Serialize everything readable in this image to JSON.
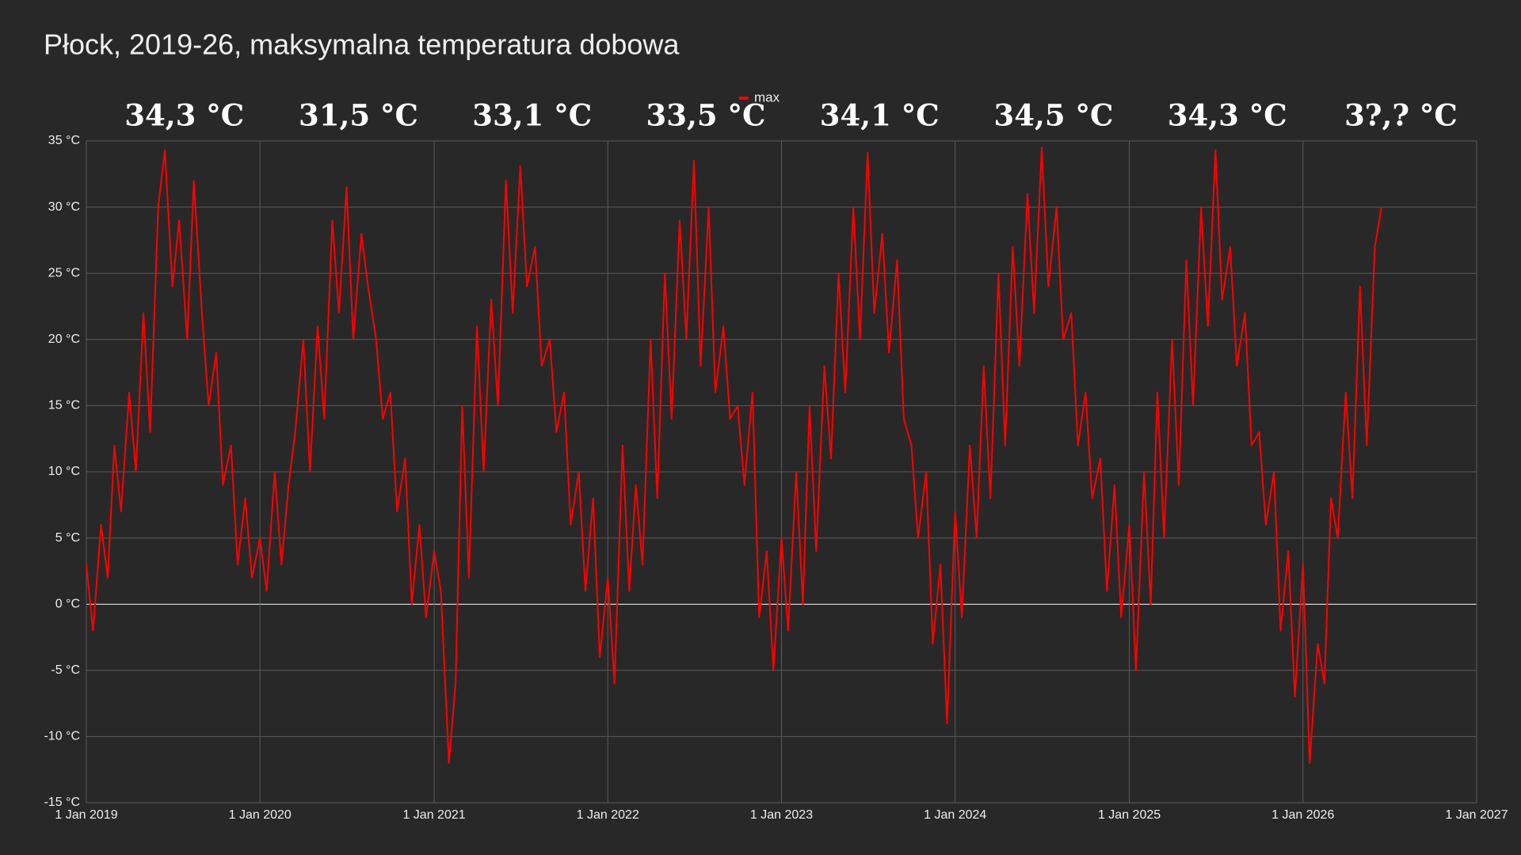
{
  "chart_data": {
    "type": "line",
    "title": "Płock, 2019-26, maksymalna temperatura dobowa",
    "annotations": [
      "34,3 °C",
      "31,5 °C",
      "33,1 °C",
      "33,5 °C",
      "34,1 °C",
      "34,5 °C",
      "34,3 °C",
      "3?,? °C"
    ],
    "x": [
      "2019-01-01",
      "2019-01-15",
      "2019-02-01",
      "2019-02-15",
      "2019-03-01",
      "2019-03-15",
      "2019-04-01",
      "2019-04-15",
      "2019-05-01",
      "2019-05-15",
      "2019-06-01",
      "2019-06-15",
      "2019-07-01",
      "2019-07-15",
      "2019-08-01",
      "2019-08-15",
      "2019-09-01",
      "2019-09-15",
      "2019-10-01",
      "2019-10-15",
      "2019-11-01",
      "2019-11-15",
      "2019-12-01",
      "2019-12-15",
      "2020-01-01",
      "2020-01-15",
      "2020-02-01",
      "2020-02-15",
      "2020-03-01",
      "2020-03-15",
      "2020-04-01",
      "2020-04-15",
      "2020-05-01",
      "2020-05-15",
      "2020-06-01",
      "2020-06-15",
      "2020-07-01",
      "2020-07-15",
      "2020-08-01",
      "2020-08-15",
      "2020-09-01",
      "2020-09-15",
      "2020-10-01",
      "2020-10-15",
      "2020-11-01",
      "2020-11-15",
      "2020-12-01",
      "2020-12-15",
      "2021-01-01",
      "2021-01-15",
      "2021-02-01",
      "2021-02-15",
      "2021-03-01",
      "2021-03-15",
      "2021-04-01",
      "2021-04-15",
      "2021-05-01",
      "2021-05-15",
      "2021-06-01",
      "2021-06-15",
      "2021-07-01",
      "2021-07-15",
      "2021-08-01",
      "2021-08-15",
      "2021-09-01",
      "2021-09-15",
      "2021-10-01",
      "2021-10-15",
      "2021-11-01",
      "2021-11-15",
      "2021-12-01",
      "2021-12-15",
      "2022-01-01",
      "2022-01-15",
      "2022-02-01",
      "2022-02-15",
      "2022-03-01",
      "2022-03-15",
      "2022-04-01",
      "2022-04-15",
      "2022-05-01",
      "2022-05-15",
      "2022-06-01",
      "2022-06-15",
      "2022-07-01",
      "2022-07-15",
      "2022-08-01",
      "2022-08-15",
      "2022-09-01",
      "2022-09-15",
      "2022-10-01",
      "2022-10-15",
      "2022-11-01",
      "2022-11-15",
      "2022-12-01",
      "2022-12-15",
      "2023-01-01",
      "2023-01-15",
      "2023-02-01",
      "2023-02-15",
      "2023-03-01",
      "2023-03-15",
      "2023-04-01",
      "2023-04-15",
      "2023-05-01",
      "2023-05-15",
      "2023-06-01",
      "2023-06-15",
      "2023-07-01",
      "2023-07-15",
      "2023-08-01",
      "2023-08-15",
      "2023-09-01",
      "2023-09-15",
      "2023-10-01",
      "2023-10-15",
      "2023-11-01",
      "2023-11-15",
      "2023-12-01",
      "2023-12-15",
      "2024-01-01",
      "2024-01-15",
      "2024-02-01",
      "2024-02-15",
      "2024-03-01",
      "2024-03-15",
      "2024-04-01",
      "2024-04-15",
      "2024-05-01",
      "2024-05-15",
      "2024-06-01",
      "2024-06-15",
      "2024-07-01",
      "2024-07-15",
      "2024-08-01",
      "2024-08-15",
      "2024-09-01",
      "2024-09-15",
      "2024-10-01",
      "2024-10-15",
      "2024-11-01",
      "2024-11-15",
      "2024-12-01",
      "2024-12-15",
      "2025-01-01",
      "2025-01-15",
      "2025-02-01",
      "2025-02-15",
      "2025-03-01",
      "2025-03-15",
      "2025-04-01",
      "2025-04-15",
      "2025-05-01",
      "2025-05-15",
      "2025-06-01",
      "2025-06-15",
      "2025-07-01",
      "2025-07-15",
      "2025-08-01",
      "2025-08-15",
      "2025-09-01",
      "2025-09-15",
      "2025-10-01",
      "2025-10-15",
      "2025-11-01",
      "2025-11-15",
      "2025-12-01",
      "2025-12-15",
      "2026-01-01",
      "2026-01-15",
      "2026-02-01",
      "2026-02-15",
      "2026-03-01",
      "2026-03-15",
      "2026-04-01",
      "2026-04-15",
      "2026-05-01",
      "2026-05-15",
      "2026-06-01",
      "2026-06-15"
    ],
    "series": [
      {
        "name": "max",
        "color": "#ff0000",
        "values": [
          3,
          -2,
          6,
          2,
          12,
          7,
          16,
          10,
          22,
          13,
          30,
          34.3,
          24,
          29,
          20,
          32,
          22,
          15,
          19,
          9,
          12,
          3,
          8,
          2,
          5,
          1,
          10,
          3,
          9,
          13,
          20,
          10,
          21,
          14,
          29,
          22,
          31.5,
          20,
          28,
          24,
          20,
          14,
          16,
          7,
          11,
          0,
          6,
          -1,
          4,
          1,
          -12,
          -6,
          15,
          2,
          21,
          10,
          23,
          15,
          32,
          22,
          33.1,
          24,
          27,
          18,
          20,
          13,
          16,
          6,
          10,
          1,
          8,
          -4,
          2,
          -6,
          12,
          1,
          9,
          3,
          20,
          8,
          25,
          14,
          29,
          20,
          33.5,
          18,
          30,
          16,
          21,
          14,
          15,
          9,
          16,
          -1,
          4,
          -5,
          5,
          -2,
          10,
          0,
          15,
          4,
          18,
          11,
          25,
          16,
          30,
          20,
          34.1,
          22,
          28,
          19,
          26,
          14,
          12,
          5,
          10,
          -3,
          3,
          -9,
          7,
          -1,
          12,
          5,
          18,
          8,
          25,
          12,
          27,
          18,
          31,
          22,
          34.5,
          24,
          30,
          20,
          22,
          12,
          16,
          8,
          11,
          1,
          9,
          -1,
          6,
          -5,
          10,
          0,
          16,
          5,
          20,
          9,
          26,
          15,
          30,
          21,
          34.3,
          23,
          27,
          18,
          22,
          12,
          13,
          6,
          10,
          -2,
          4,
          -7,
          3,
          -12,
          -3,
          -6,
          8,
          5,
          16,
          8,
          24,
          12,
          27,
          30
        ]
      }
    ],
    "xlim": [
      "2019-01-01",
      "2027-01-01"
    ],
    "xticks": [
      {
        "value": "2019-01-01",
        "label": "1 Jan 2019"
      },
      {
        "value": "2020-01-01",
        "label": "1 Jan 2020"
      },
      {
        "value": "2021-01-01",
        "label": "1 Jan 2021"
      },
      {
        "value": "2022-01-01",
        "label": "1 Jan 2022"
      },
      {
        "value": "2023-01-01",
        "label": "1 Jan 2023"
      },
      {
        "value": "2024-01-01",
        "label": "1 Jan 2024"
      },
      {
        "value": "2025-01-01",
        "label": "1 Jan 2025"
      },
      {
        "value": "2026-01-01",
        "label": "1 Jan 2026"
      },
      {
        "value": "2027-01-01",
        "label": "1 Jan 2027"
      }
    ],
    "ylim": [
      -15,
      35
    ],
    "yticks": [
      {
        "value": -15,
        "label": "-15 °C"
      },
      {
        "value": -10,
        "label": "-10 °C"
      },
      {
        "value": -5,
        "label": "-5 °C"
      },
      {
        "value": 0,
        "label": "0 °C"
      },
      {
        "value": 5,
        "label": "5 °C"
      },
      {
        "value": 10,
        "label": "10 °C"
      },
      {
        "value": 15,
        "label": "15 °C"
      },
      {
        "value": 20,
        "label": "20 °C"
      },
      {
        "value": 25,
        "label": "25 °C"
      },
      {
        "value": 30,
        "label": "30 °C"
      },
      {
        "value": 35,
        "label": "35 °C"
      }
    ],
    "grid": true
  }
}
